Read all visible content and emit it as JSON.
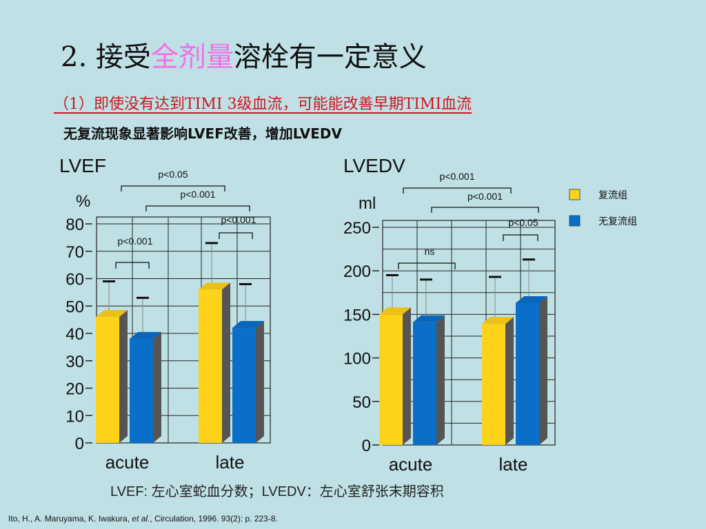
{
  "slide": {
    "title_prefix": "2. 接受",
    "title_highlight": "全剂量",
    "title_suffix": "溶栓有一定意义",
    "subtitle": "（1）即使没有达到TIMI 3级血流，可能能改善早期TIMI血流",
    "subtitle2": "无复流现象显著影响LVEF改善，增加LVEDV",
    "footer_note": "LVEF: 左心室蛇血分数；LVEDV：左心室舒张末期容积",
    "citation_a": "Ito, H., A. Maruyama, K. Iwakura, ",
    "citation_b": "et al.",
    "citation_c": ", Circulation, 1996. 93(2): p. 223-8."
  },
  "colors": {
    "background": "#bfe0e5",
    "reflow": "#ffd21a",
    "no_reflow": "#0a6fc8",
    "title_highlight": "#f46ee6",
    "subtitle": "#d2141e"
  },
  "legend": {
    "items": [
      {
        "label": "复流组",
        "color": "#ffd21a"
      },
      {
        "label": "无复流组",
        "color": "#0a6fc8"
      }
    ]
  },
  "chart_data": [
    {
      "type": "bar",
      "title": "LVEF",
      "ylabel": "%",
      "categories": [
        "acute",
        "late"
      ],
      "ylim": [
        0,
        80
      ],
      "yticks": [
        0,
        10,
        20,
        30,
        40,
        50,
        60,
        70,
        80
      ],
      "series": [
        {
          "name": "复流组",
          "values": [
            46,
            56
          ],
          "error_upper": [
            59,
            73
          ]
        },
        {
          "name": "无复流组",
          "values": [
            38,
            42
          ],
          "error_upper": [
            53,
            58
          ]
        }
      ],
      "annotations": [
        {
          "text": "p<0.001",
          "type": "within",
          "category": "acute"
        },
        {
          "text": "p<0.001",
          "type": "within",
          "category": "late"
        },
        {
          "text": "p<0.001",
          "type": "between",
          "series": "无复流组"
        },
        {
          "text": "p<0.05",
          "type": "between",
          "series": "复流组"
        }
      ]
    },
    {
      "type": "bar",
      "title": "LVEDV",
      "ylabel": "ml",
      "categories": [
        "acute",
        "late"
      ],
      "ylim": [
        0,
        250
      ],
      "yticks": [
        0,
        50,
        100,
        150,
        200,
        250
      ],
      "series": [
        {
          "name": "复流组",
          "values": [
            150,
            139
          ],
          "error_upper": [
            195,
            193
          ]
        },
        {
          "name": "无复流组",
          "values": [
            141,
            163
          ],
          "error_upper": [
            190,
            213
          ]
        }
      ],
      "annotations": [
        {
          "text": "ns",
          "type": "within",
          "category": "acute"
        },
        {
          "text": "p<0.05",
          "type": "within",
          "category": "late"
        },
        {
          "text": "p<0.001",
          "type": "between",
          "series": "无复流组"
        },
        {
          "text": "p<0.001",
          "type": "between",
          "series": "复流组"
        }
      ]
    }
  ]
}
